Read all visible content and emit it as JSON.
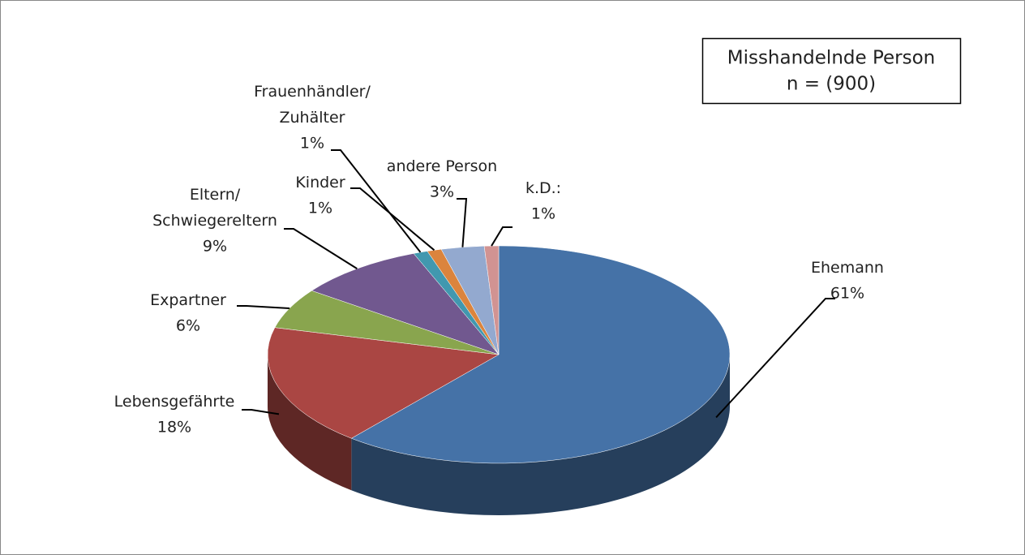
{
  "chart_data": {
    "type": "pie3d",
    "title": "Misshandelnde Person",
    "subtitle": "n = (900)",
    "categories": [
      "Ehemann",
      "Lebensgefährte",
      "Expartner",
      "Eltern/Schwiegereltern",
      "Frauenhändler/Zuhälter",
      "Kinder",
      "andere Person",
      "k.D.:"
    ],
    "values": [
      61,
      18,
      6,
      9,
      1,
      1,
      3,
      1
    ],
    "value_labels": [
      "61%",
      "18%",
      "6%",
      "9%",
      "1%",
      "1%",
      "3%",
      "1%"
    ],
    "colors": [
      "#4572a7",
      "#aa4643",
      "#89a54e",
      "#71588f",
      "#4198af",
      "#db843d",
      "#93a9cf",
      "#d19392"
    ]
  }
}
